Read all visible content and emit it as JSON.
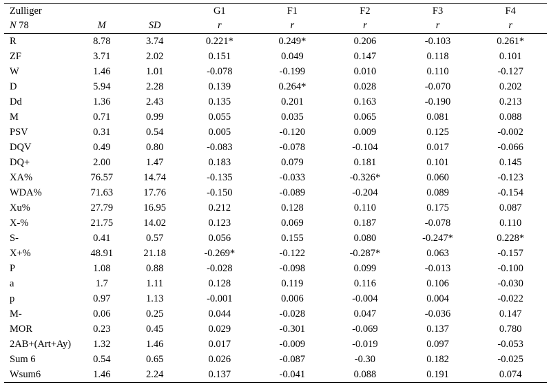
{
  "page": {
    "background_color": "#ffffff",
    "text_color": "#000000"
  },
  "table": {
    "header": {
      "title": "Zulliger",
      "n_label": "N",
      "n_value": "78",
      "m_label": "M",
      "sd_label": "SD",
      "group_cols": [
        "G1",
        "F1",
        "F2",
        "F3",
        "F4"
      ],
      "r_label": "r"
    },
    "rows": [
      {
        "label": "R",
        "m": "8.78",
        "sd": "3.74",
        "r": [
          "0.221*",
          "0.249*",
          "0.206",
          "-0.103",
          "0.261*"
        ]
      },
      {
        "label": "ZF",
        "m": "3.71",
        "sd": "2.02",
        "r": [
          "0.151",
          "0.049",
          "0.147",
          "0.118",
          "0.101"
        ]
      },
      {
        "label": "W",
        "m": "1.46",
        "sd": "1.01",
        "r": [
          "-0.078",
          "-0.199",
          "0.010",
          "0.110",
          "-0.127"
        ]
      },
      {
        "label": "D",
        "m": "5.94",
        "sd": "2.28",
        "r": [
          "0.139",
          "0.264*",
          "0.028",
          "-0.070",
          "0.202"
        ]
      },
      {
        "label": "Dd",
        "m": "1.36",
        "sd": "2.43",
        "r": [
          "0.135",
          "0.201",
          "0.163",
          "-0.190",
          "0.213"
        ]
      },
      {
        "label": "M",
        "m": "0.71",
        "sd": "0.99",
        "r": [
          "0.055",
          "0.035",
          "0.065",
          "0.081",
          "0.088"
        ]
      },
      {
        "label": "PSV",
        "m": "0.31",
        "sd": "0.54",
        "r": [
          "0.005",
          "-0.120",
          "0.009",
          "0.125",
          "-0.002"
        ]
      },
      {
        "label": "DQV",
        "m": "0.49",
        "sd": "0.80",
        "r": [
          "-0.083",
          "-0.078",
          "-0.104",
          "0.017",
          "-0.066"
        ]
      },
      {
        "label": "DQ+",
        "m": "2.00",
        "sd": "1.47",
        "r": [
          "0.183",
          "0.079",
          "0.181",
          "0.101",
          "0.145"
        ]
      },
      {
        "label": "XA%",
        "m": "76.57",
        "sd": "14.74",
        "r": [
          "-0.135",
          "-0.033",
          "-0.326*",
          "0.060",
          "-0.123"
        ]
      },
      {
        "label": "WDA%",
        "m": "71.63",
        "sd": "17.76",
        "r": [
          "-0.150",
          "-0.089",
          "-0.204",
          "0.089",
          "-0.154"
        ]
      },
      {
        "label": "Xu%",
        "m": "27.79",
        "sd": "16.95",
        "r": [
          "0.212",
          "0.128",
          "0.110",
          "0.175",
          "0.087"
        ]
      },
      {
        "label": "X-%",
        "m": "21.75",
        "sd": "14.02",
        "r": [
          "0.123",
          "0.069",
          "0.187",
          "-0.078",
          "0.110"
        ]
      },
      {
        "label": "S-",
        "m": "0.41",
        "sd": "0.57",
        "r": [
          "0.056",
          "0.155",
          "0.080",
          "-0.247*",
          "0.228*"
        ]
      },
      {
        "label": "X+%",
        "m": "48.91",
        "sd": "21.18",
        "r": [
          "-0.269*",
          "-0.122",
          "-0.287*",
          "0.063",
          "-0.157"
        ]
      },
      {
        "label": "P",
        "m": "1.08",
        "sd": "0.88",
        "r": [
          "-0.028",
          "-0.098",
          "0.099",
          "-0.013",
          "-0.100"
        ]
      },
      {
        "label": "a",
        "m": "1.7",
        "sd": "1.11",
        "r": [
          "0.128",
          "0.119",
          "0.116",
          "0.106",
          "-0.030"
        ]
      },
      {
        "label": "p",
        "m": "0.97",
        "sd": "1.13",
        "r": [
          "-0.001",
          "0.006",
          "-0.004",
          "0.004",
          "-0.022"
        ]
      },
      {
        "label": "M-",
        "m": "0.06",
        "sd": "0.25",
        "r": [
          "0.044",
          "-0.028",
          "0.047",
          "-0.036",
          "0.147"
        ]
      },
      {
        "label": "MOR",
        "m": "0.23",
        "sd": "0.45",
        "r": [
          "0.029",
          "-0.301",
          "-0.069",
          "0.137",
          "0.780"
        ]
      },
      {
        "label": "2AB+(Art+Ay)",
        "m": "1.32",
        "sd": "1.46",
        "r": [
          "0.017",
          "-0.009",
          "-0.019",
          "0.097",
          "-0.053"
        ]
      },
      {
        "label": "Sum 6",
        "m": "0.54",
        "sd": "0.65",
        "r": [
          "0.026",
          "-0.087",
          "-0.30",
          "0.182",
          "-0.025"
        ]
      },
      {
        "label": "Wsum6",
        "m": "1.46",
        "sd": "2.24",
        "r": [
          "0.137",
          "-0.041",
          "0.088",
          "0.191",
          "0.074"
        ]
      }
    ]
  }
}
